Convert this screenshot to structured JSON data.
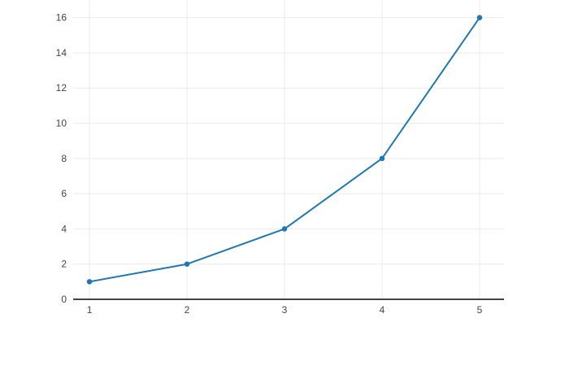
{
  "chart_data": {
    "type": "line",
    "x": [
      1,
      2,
      3,
      4,
      5
    ],
    "y": [
      1,
      2,
      4,
      8,
      16
    ],
    "title": "",
    "xlabel": "",
    "ylabel": "",
    "x_tick_labels": [
      "1",
      "2",
      "3",
      "4",
      "5"
    ],
    "x_tick_values": [
      1,
      2,
      3,
      4,
      5
    ],
    "y_tick_labels": [
      "0",
      "2",
      "4",
      "6",
      "8",
      "10",
      "12",
      "14",
      "16"
    ],
    "y_tick_values": [
      0,
      2,
      4,
      6,
      8,
      10,
      12,
      14,
      16
    ],
    "xlim": [
      0.833,
      5.25
    ],
    "ylim": [
      0,
      17
    ],
    "grid": true,
    "legend": false,
    "line_shape": "linear",
    "markers": true,
    "colors": {
      "line": "#1f77b4",
      "marker": "#1f77b4",
      "grid": "#ebebeb",
      "axis_line": "#444444",
      "tick_label": "#444444",
      "background": "#ffffff"
    }
  }
}
